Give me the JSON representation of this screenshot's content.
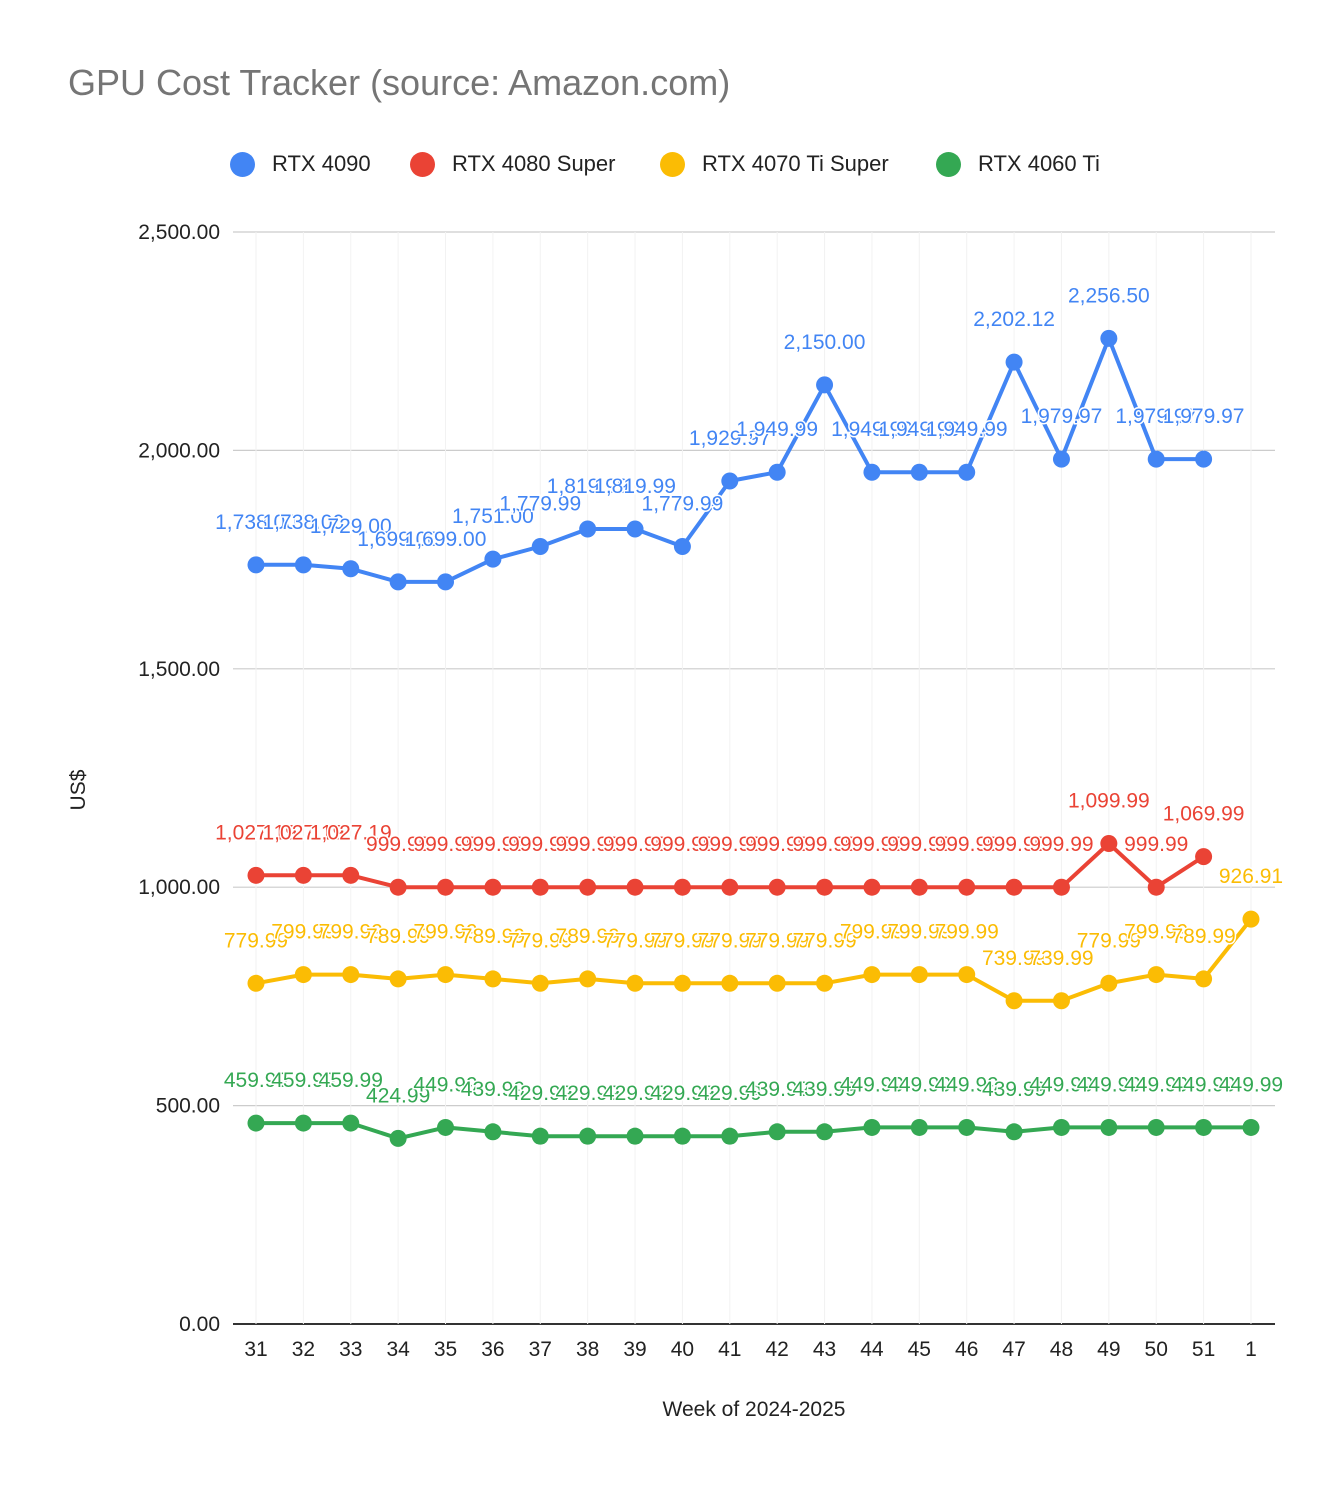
{
  "chart_data": {
    "type": "line",
    "title": "GPU Cost Tracker (source: Amazon.com)",
    "xlabel": "Week of 2024-2025",
    "ylabel": "US$",
    "ylim": [
      0,
      2500
    ],
    "yticks": [
      "0.00",
      "500.00",
      "1,000.00",
      "1,500.00",
      "2,000.00",
      "2,500.00"
    ],
    "ytick_values": [
      0,
      500,
      1000,
      1500,
      2000,
      2500
    ],
    "categories": [
      "31",
      "32",
      "33",
      "34",
      "35",
      "36",
      "37",
      "38",
      "39",
      "40",
      "41",
      "42",
      "43",
      "44",
      "45",
      "46",
      "47",
      "48",
      "49",
      "50",
      "51",
      "1"
    ],
    "grid": true,
    "legend_position": "top",
    "series": [
      {
        "name": "RTX 4090",
        "color": "#4285F4",
        "values": [
          1738.0,
          1738.0,
          1729.0,
          1699.0,
          1699.0,
          1751.0,
          1779.99,
          1819.99,
          1819.99,
          1779.99,
          1929.97,
          1949.99,
          2150.0,
          1949.99,
          1949.99,
          1949.99,
          2202.12,
          1979.97,
          2256.5,
          1979.97,
          1979.97,
          null
        ],
        "labels": [
          "1,738.00",
          "1,738.00",
          "1,729.00",
          "1,699.00",
          "1,699.00",
          "1,751.00",
          "1,779.99",
          "1,819.99",
          "1,819.99",
          "1,779.99",
          "1,929.97",
          "1,949.99",
          "2,150.00",
          "1,949.99",
          "1,949.99",
          "1,949.99",
          "2,202.12",
          "1,979.97",
          "2,256.50",
          "1,979.97",
          "1,979.97",
          null
        ]
      },
      {
        "name": "RTX 4080 Super",
        "color": "#EA4335",
        "values": [
          1027.19,
          1027.19,
          1027.19,
          999.99,
          999.99,
          999.99,
          999.99,
          999.99,
          999.99,
          999.99,
          999.99,
          999.99,
          999.99,
          999.99,
          999.99,
          999.99,
          999.99,
          999.99,
          1099.99,
          999.99,
          1069.99,
          null
        ],
        "labels": [
          "1,027.19",
          "1,027.19",
          "1,027.19",
          "999.99",
          "999.99",
          "999.99",
          "999.99",
          "999.99",
          "999.99",
          "999.99",
          "999.99",
          "999.99",
          "999.99",
          "999.99",
          "999.99",
          "999.99",
          "999.99",
          "999.99",
          "1,099.99",
          "999.99",
          "1,069.99",
          null
        ]
      },
      {
        "name": "RTX 4070 Ti Super",
        "color": "#FBBC04",
        "values": [
          779.99,
          799.99,
          799.99,
          789.99,
          799.99,
          789.99,
          779.99,
          789.99,
          779.99,
          779.99,
          779.99,
          779.99,
          779.99,
          799.99,
          799.99,
          799.99,
          739.99,
          739.99,
          779.99,
          799.99,
          789.99,
          926.91
        ],
        "labels": [
          "779.99",
          "799.99",
          "799.99",
          "789.99",
          "799.99",
          "789.99",
          "779.99",
          "789.99",
          "779.99",
          "779.99",
          "779.99",
          "779.99",
          "779.99",
          "799.99",
          "799.99",
          "799.99",
          "739.99",
          "739.99",
          "779.99",
          "799.99",
          "789.99",
          "926.91"
        ]
      },
      {
        "name": "RTX 4060 Ti",
        "color": "#34A853",
        "values": [
          459.99,
          459.99,
          459.99,
          424.99,
          449.99,
          439.99,
          429.99,
          429.99,
          429.99,
          429.99,
          429.99,
          439.99,
          439.99,
          449.99,
          449.99,
          449.99,
          439.99,
          449.99,
          449.99,
          449.99,
          449.99,
          449.99
        ],
        "labels": [
          "459.99",
          "459.99",
          "459.99",
          "424.99",
          "449.99",
          "439.99",
          "429.99",
          "429.99",
          "429.99",
          "429.99",
          "429.99",
          "439.99",
          "439.99",
          "449.99",
          "449.99",
          "449.99",
          "439.99",
          "449.99",
          "449.99",
          "449.99",
          "449.99",
          "449.99"
        ]
      }
    ]
  }
}
